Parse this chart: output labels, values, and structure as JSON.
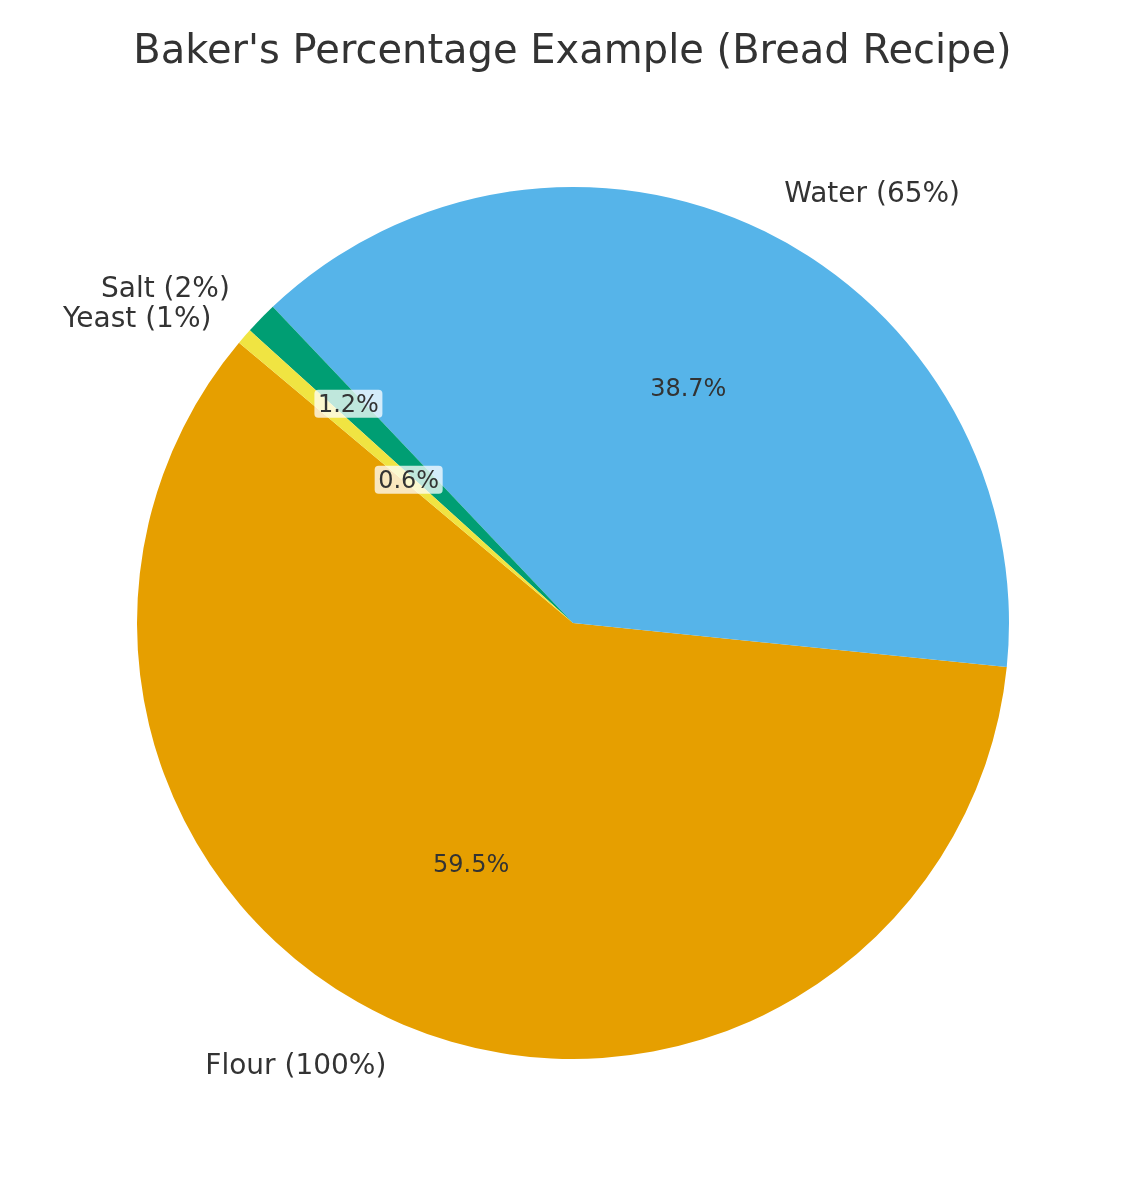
{
  "chart_data": {
    "type": "pie",
    "title": "Baker's Percentage Example (Bread Recipe)",
    "categories": [
      "Flour (100%)",
      "Water (65%)",
      "Salt (2%)",
      "Yeast (1%)"
    ],
    "values": [
      59.5,
      38.7,
      1.2,
      0.6
    ],
    "colors": [
      "#e69f00",
      "#56b4e9",
      "#009e73",
      "#f0e442"
    ],
    "value_labels": [
      "59.5%",
      "38.7%",
      "1.2%",
      "0.6%"
    ],
    "legend": false
  }
}
